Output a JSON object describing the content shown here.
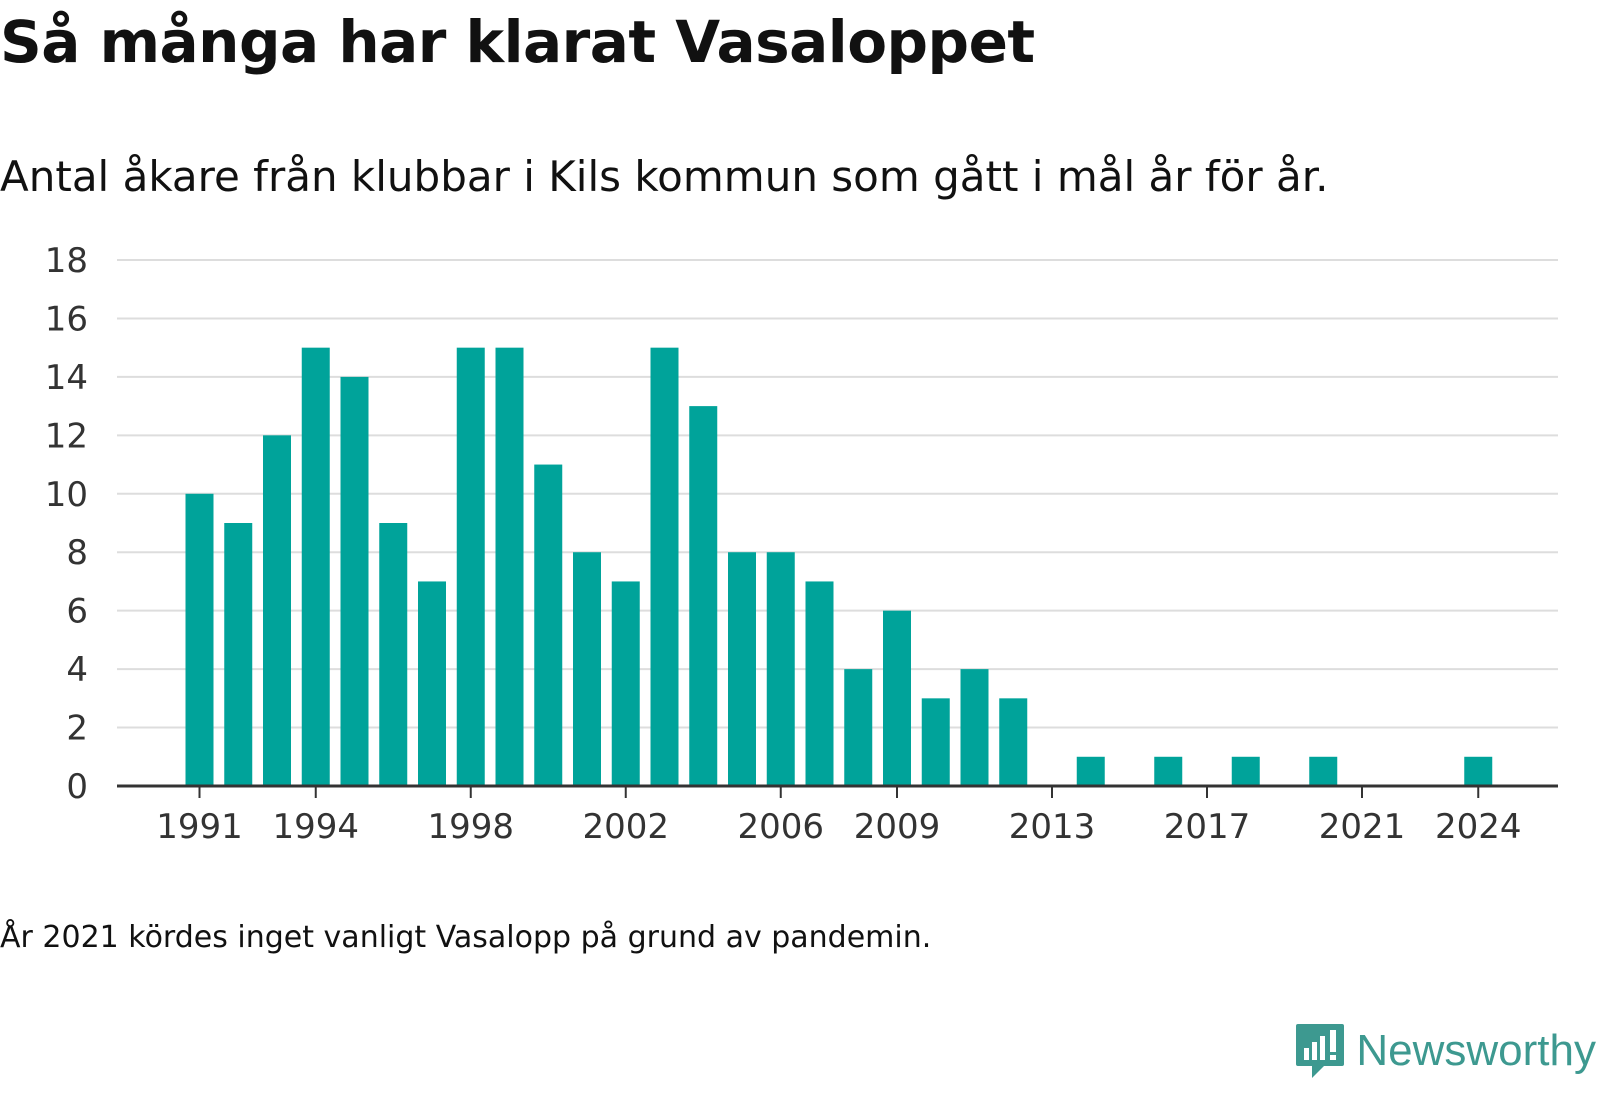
{
  "title": "Så många har klarat Vasaloppet",
  "subtitle": "Antal åkare från klubbar i Kils kommun som gått i mål år för år.",
  "note": "År 2021 kördes inget vanligt Vasalopp på grund av pandemin.",
  "brand": {
    "name": "Newsworthy",
    "icon": "newsworthy-logo-icon",
    "color": "#3d9990"
  },
  "colors": {
    "bar": "#00a39a",
    "grid": "#dddddd",
    "axis": "#333333",
    "text": "#333333"
  },
  "chart_data": {
    "type": "bar",
    "x": [
      1991,
      1992,
      1993,
      1994,
      1995,
      1996,
      1997,
      1998,
      1999,
      2000,
      2001,
      2002,
      2003,
      2004,
      2005,
      2006,
      2007,
      2008,
      2009,
      2010,
      2011,
      2012,
      2013,
      2014,
      2015,
      2016,
      2017,
      2018,
      2019,
      2020,
      2021,
      2022,
      2023,
      2024
    ],
    "values": [
      10,
      9,
      12,
      15,
      14,
      9,
      7,
      15,
      15,
      11,
      8,
      7,
      15,
      13,
      8,
      8,
      7,
      4,
      6,
      3,
      4,
      3,
      0,
      1,
      0,
      1,
      0,
      1,
      0,
      1,
      0,
      0,
      0,
      1
    ],
    "x_tick_labels": [
      1991,
      1994,
      1998,
      2002,
      2006,
      2009,
      2013,
      2017,
      2021,
      2024
    ],
    "y_ticks": [
      0,
      2,
      4,
      6,
      8,
      10,
      12,
      14,
      16,
      18
    ],
    "ylim": [
      0,
      18
    ],
    "grid": true,
    "legend": "none"
  }
}
